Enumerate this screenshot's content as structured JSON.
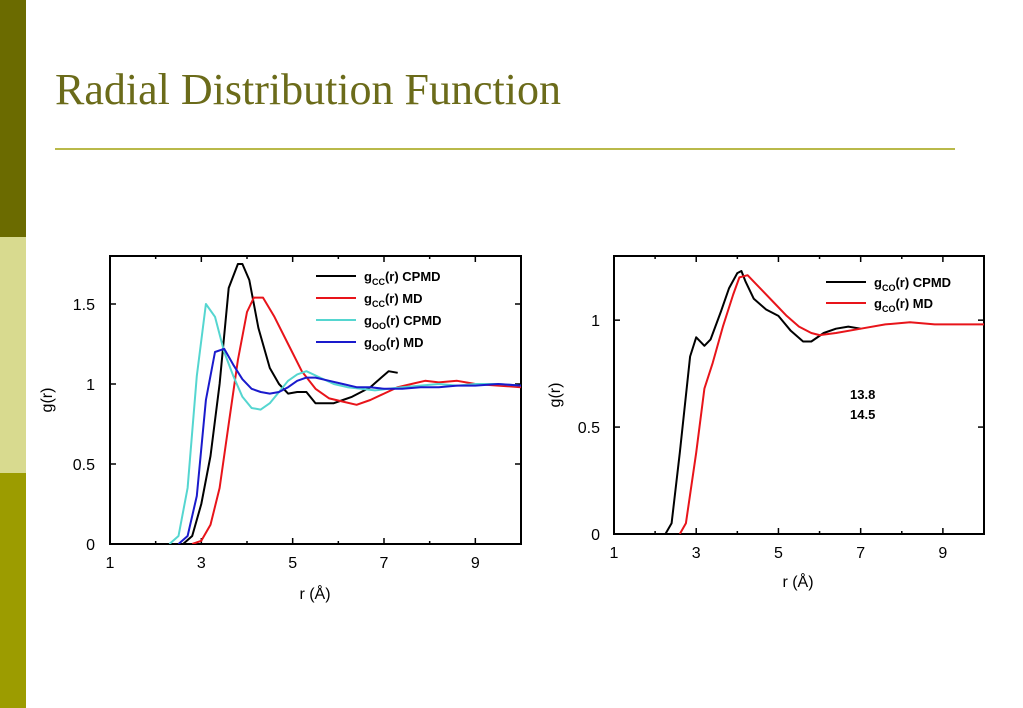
{
  "slide": {
    "title": "Radial Distribution Function",
    "colors": {
      "bar_top": "#6b6b00",
      "bar_mid": "#d8da8f",
      "bar_bot": "#9c9c00",
      "title": "#6b6b1a",
      "rule": "#b9b94a"
    }
  },
  "chart_data": [
    {
      "type": "line",
      "xlabel": "r (Å)",
      "ylabel": "g(r)",
      "xlim": [
        1,
        10
      ],
      "ylim": [
        0,
        1.8
      ],
      "xticks": [
        1,
        3,
        5,
        7,
        9
      ],
      "xtick_labels": [
        "1",
        "3",
        "5",
        "7",
        "9"
      ],
      "yticks": [
        0,
        0.5,
        1,
        1.5
      ],
      "ytick_labels": [
        "0",
        "0.5",
        "1",
        "1.5"
      ],
      "legend_position": "top-right",
      "series": [
        {
          "name": "gcc(r) CPMD",
          "legend_main": "g",
          "legend_sub": "CC",
          "legend_suffix": "(r) CPMD",
          "color": "#000000",
          "x": [
            2.6,
            2.8,
            3.0,
            3.2,
            3.4,
            3.6,
            3.8,
            3.9,
            4.05,
            4.25,
            4.5,
            4.7,
            4.9,
            5.1,
            5.3,
            5.5,
            5.7,
            5.9,
            6.1,
            6.3,
            6.5,
            6.7,
            6.9,
            7.1,
            7.3
          ],
          "y": [
            0,
            0.05,
            0.25,
            0.55,
            1.0,
            1.6,
            1.75,
            1.75,
            1.65,
            1.35,
            1.1,
            1.0,
            0.94,
            0.95,
            0.95,
            0.88,
            0.88,
            0.88,
            0.9,
            0.92,
            0.95,
            0.98,
            1.03,
            1.08,
            1.07
          ]
        },
        {
          "name": "gcc(r) MD",
          "legend_main": "g",
          "legend_sub": "CC",
          "legend_suffix": "(r) MD",
          "color": "#e8141a",
          "x": [
            2.8,
            3.0,
            3.2,
            3.4,
            3.6,
            3.8,
            4.0,
            4.15,
            4.35,
            4.6,
            4.9,
            5.2,
            5.5,
            5.8,
            6.1,
            6.4,
            6.7,
            7.0,
            7.3,
            7.6,
            7.9,
            8.2,
            8.6,
            9.0,
            9.5,
            10.0
          ],
          "y": [
            0,
            0.02,
            0.12,
            0.35,
            0.75,
            1.15,
            1.45,
            1.54,
            1.54,
            1.42,
            1.25,
            1.08,
            0.97,
            0.91,
            0.89,
            0.87,
            0.9,
            0.94,
            0.98,
            1.0,
            1.02,
            1.01,
            1.02,
            1.0,
            0.99,
            0.98
          ]
        },
        {
          "name": "goo(r) CPMD",
          "legend_main": "g",
          "legend_sub": "OO",
          "legend_suffix": "(r) CPMD",
          "color": "#55d6d0",
          "x": [
            2.3,
            2.5,
            2.7,
            2.9,
            3.1,
            3.3,
            3.5,
            3.7,
            3.9,
            4.1,
            4.3,
            4.5,
            4.7,
            4.9,
            5.1,
            5.3,
            5.6,
            5.9,
            6.2,
            6.5,
            6.8,
            7.1,
            7.4,
            7.8,
            8.2,
            8.6,
            9.0,
            9.5,
            10.0
          ],
          "y": [
            0,
            0.05,
            0.35,
            1.05,
            1.5,
            1.42,
            1.2,
            1.05,
            0.92,
            0.85,
            0.84,
            0.88,
            0.95,
            1.02,
            1.06,
            1.08,
            1.04,
            1.0,
            0.98,
            0.97,
            0.96,
            0.97,
            0.98,
            0.99,
            1.0,
            0.99,
            1.0,
            1.0,
            0.99
          ]
        },
        {
          "name": "goo(r) MD",
          "legend_main": "g",
          "legend_sub": "OO",
          "legend_suffix": "(r) MD",
          "color": "#1a1acc",
          "x": [
            2.5,
            2.7,
            2.9,
            3.1,
            3.3,
            3.5,
            3.7,
            3.9,
            4.1,
            4.3,
            4.5,
            4.7,
            4.9,
            5.1,
            5.3,
            5.5,
            5.8,
            6.1,
            6.4,
            6.7,
            7.0,
            7.4,
            7.8,
            8.2,
            8.6,
            9.0,
            9.5,
            10.0
          ],
          "y": [
            0,
            0.05,
            0.3,
            0.9,
            1.2,
            1.22,
            1.12,
            1.03,
            0.97,
            0.95,
            0.94,
            0.95,
            0.98,
            1.02,
            1.04,
            1.04,
            1.02,
            1.0,
            0.98,
            0.98,
            0.97,
            0.97,
            0.98,
            0.98,
            0.99,
            0.99,
            1.0,
            0.99
          ]
        }
      ]
    },
    {
      "type": "line",
      "xlabel": "r (Å)",
      "ylabel": "g(r)",
      "xlim": [
        1,
        10
      ],
      "ylim": [
        0,
        1.3
      ],
      "xticks": [
        1,
        3,
        5,
        7,
        9
      ],
      "xtick_labels": [
        "1",
        "3",
        "5",
        "7",
        "9"
      ],
      "yticks": [
        0,
        0.5,
        1
      ],
      "ytick_labels": [
        "0",
        "0.5",
        "1"
      ],
      "legend_position": "top-right",
      "annotations": [
        {
          "text": "13.8",
          "color": "#000000"
        },
        {
          "text": "14.5",
          "color": "#e8141a"
        }
      ],
      "series": [
        {
          "name": "gco(r) CPMD",
          "legend_main": "g",
          "legend_sub": "CO",
          "legend_suffix": "(r) CPMD",
          "color": "#000000",
          "x": [
            2.25,
            2.4,
            2.6,
            2.85,
            3.0,
            3.2,
            3.35,
            3.6,
            3.8,
            4.0,
            4.1,
            4.2,
            4.4,
            4.7,
            5.0,
            5.3,
            5.6,
            5.8,
            6.1,
            6.4,
            6.7,
            7.0
          ],
          "y": [
            0,
            0.05,
            0.38,
            0.83,
            0.92,
            0.88,
            0.91,
            1.04,
            1.15,
            1.22,
            1.23,
            1.18,
            1.1,
            1.05,
            1.02,
            0.95,
            0.9,
            0.9,
            0.94,
            0.96,
            0.97,
            0.96
          ]
        },
        {
          "name": "gco(r) MD",
          "legend_main": "g",
          "legend_sub": "CO",
          "legend_suffix": "(r) MD",
          "color": "#e8141a",
          "x": [
            2.6,
            2.75,
            3.0,
            3.2,
            3.4,
            3.65,
            3.9,
            4.05,
            4.25,
            4.4,
            4.6,
            4.9,
            5.2,
            5.5,
            5.8,
            6.0,
            6.4,
            7.0,
            7.6,
            8.2,
            8.8,
            9.4,
            10.0
          ],
          "y": [
            0,
            0.05,
            0.38,
            0.68,
            0.8,
            0.97,
            1.12,
            1.2,
            1.21,
            1.18,
            1.14,
            1.08,
            1.02,
            0.97,
            0.94,
            0.93,
            0.94,
            0.96,
            0.98,
            0.99,
            0.98,
            0.98,
            0.98
          ]
        }
      ]
    }
  ]
}
